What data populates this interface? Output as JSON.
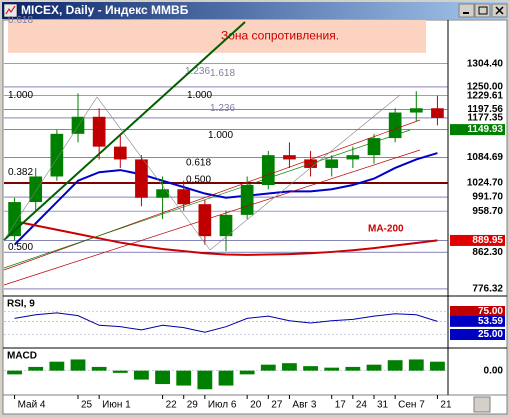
{
  "window": {
    "title": "MICEX, Daily - Индекс ММВБ"
  },
  "chart_data": [
    {
      "type": "candlestick",
      "categories": [
        "Май 4",
        null,
        null,
        "25",
        "Июн 1",
        null,
        null,
        "22",
        "29",
        "Июл 6",
        null,
        "20",
        "27",
        "Авг 3",
        null,
        "17",
        "24",
        "31",
        "Сен 7",
        null,
        "21"
      ],
      "open": [
        900,
        980,
        1040,
        1140,
        1180,
        1110,
        1080,
        990,
        1010,
        975,
        900,
        950,
        1020,
        1090,
        1080,
        1060,
        1080,
        1090,
        1130,
        1190,
        1200
      ],
      "high": [
        990,
        1060,
        1150,
        1235,
        1200,
        1140,
        1090,
        1040,
        1030,
        985,
        960,
        1040,
        1100,
        1120,
        1100,
        1090,
        1110,
        1140,
        1200,
        1240,
        1230
      ],
      "low": [
        890,
        960,
        1030,
        1120,
        1080,
        1060,
        970,
        940,
        960,
        880,
        865,
        940,
        1010,
        1060,
        1040,
        1040,
        1060,
        1070,
        1120,
        1170,
        1160
      ],
      "close": [
        980,
        1040,
        1140,
        1180,
        1110,
        1080,
        990,
        1010,
        975,
        900,
        950,
        1020,
        1090,
        1080,
        1060,
        1080,
        1090,
        1130,
        1190,
        1200,
        1177.35
      ],
      "up_color": "#008000",
      "down_color": "#c00000",
      "ylim": [
        762,
        1407
      ],
      "yticks": [
        {
          "value": 1304.4,
          "label": "1304.40"
        },
        {
          "value": 1250,
          "label": "1250.00"
        },
        1229.61,
        1197.56,
        {
          "value": 1177.35,
          "label": "1177.35"
        },
        {
          "value": 1149.93,
          "label": "1149.93",
          "bg": "#008000"
        },
        1084.69,
        {
          "value": 1024.7,
          "label": "1024.70",
          "line": "#800000"
        },
        {
          "value": 991.7,
          "label": "991.70"
        },
        {
          "value": 958.7,
          "label": "958.70"
        },
        {
          "value": 889.95,
          "label": "889.95",
          "bg": "#e00000"
        },
        {
          "value": 862.3,
          "label": "862.30"
        },
        776.32
      ],
      "zone": {
        "text": "Зона сопротивления.",
        "range": [
          1330,
          1407
        ],
        "color": "#fcd3c0"
      },
      "lines": [
        {
          "color": "#0000cc",
          "values": [
            880,
            930,
            980,
            1030,
            1050,
            1055,
            1045,
            1030,
            1015,
            1000,
            990,
            995,
            1000,
            1005,
            1005,
            1010,
            1020,
            1035,
            1060,
            1080,
            1095
          ]
        },
        {
          "color": "#cc0000",
          "values": [
            935,
            925,
            915,
            905,
            895,
            885,
            877,
            870,
            865,
            860,
            857,
            856,
            857,
            858,
            860,
            863,
            867,
            872,
            878,
            884,
            890
          ]
        }
      ],
      "annotations": [
        {
          "text": "0.618",
          "level": 1395,
          "color": "#8080a0"
        },
        {
          "text": "1.236",
          "level": 1275,
          "color": "#8080a0"
        },
        {
          "text": "1.618",
          "level": 1270,
          "color": "#8080a0"
        },
        {
          "text": "1.000",
          "level": 1218,
          "color": "#000000"
        },
        {
          "text": "1.000",
          "level": 1218,
          "color": "#000000"
        },
        {
          "text": "1.236",
          "level": 1188,
          "color": "#8080a0"
        },
        {
          "text": "1.000",
          "level": 1125,
          "color": "#000000"
        },
        {
          "text": "0.618",
          "level": 1060,
          "color": "#000000"
        },
        {
          "text": "0.382",
          "level": 1038,
          "color": "#000000"
        },
        {
          "text": "0.500",
          "level": 1020,
          "color": "#000000"
        },
        {
          "text": "0.500",
          "level": 862,
          "color": "#000000"
        },
        {
          "text": "MA-200",
          "level": 905,
          "color": "#cc0000"
        }
      ]
    },
    {
      "type": "line",
      "title": "RSI, 9",
      "color": "#0000aa",
      "values": [
        60,
        68,
        72,
        66,
        45,
        42,
        35,
        45,
        40,
        30,
        42,
        60,
        65,
        55,
        50,
        55,
        58,
        65,
        70,
        68,
        53.59
      ],
      "ylim": [
        0,
        100
      ],
      "yticks": [
        {
          "value": 75,
          "label": "75.00",
          "bg": "#c00000"
        },
        {
          "value": 53.59,
          "label": "53.59",
          "bg": "#0000c0"
        },
        {
          "value": 25,
          "label": "25.00",
          "bg": "#0000c0"
        }
      ]
    },
    {
      "type": "bar",
      "title": "MACD",
      "color": "#008000",
      "values": [
        -5,
        5,
        12,
        15,
        5,
        -3,
        -12,
        -18,
        -20,
        -25,
        -20,
        -5,
        8,
        10,
        6,
        4,
        5,
        8,
        14,
        15,
        12
      ],
      "ylim": [
        -30,
        25
      ],
      "yticks": [
        {
          "value": 0,
          "label": "0.00"
        }
      ]
    }
  ]
}
